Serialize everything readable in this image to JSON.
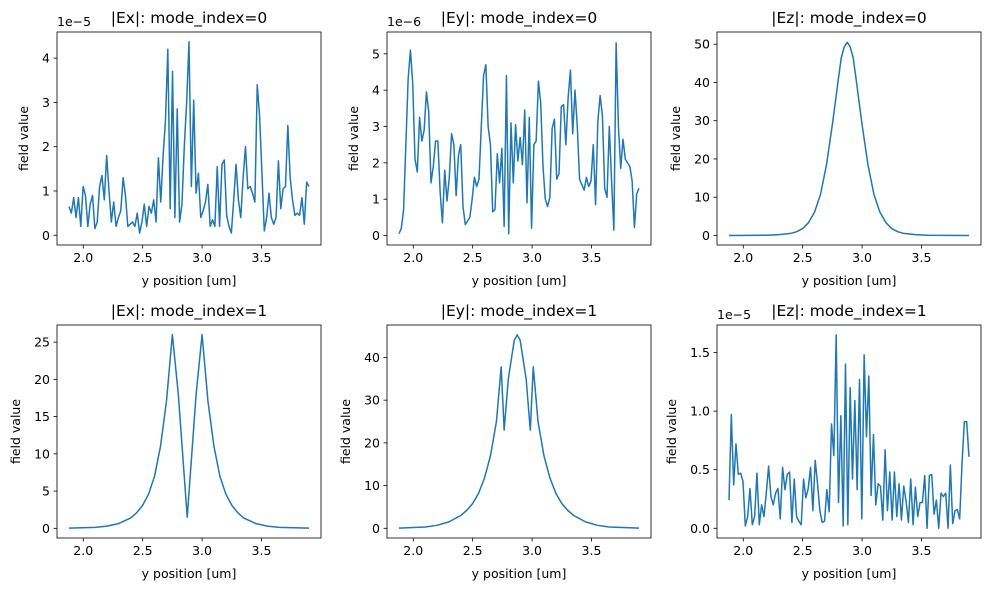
{
  "chart_data": [
    {
      "type": "line",
      "title": "|Ex|: mode_index=0",
      "xlabel": "y position [um]",
      "ylabel": "field value",
      "offset_text": "1e−5",
      "color": "#1f77b4",
      "grid": false,
      "xlim": [
        1.779,
        4.001
      ],
      "ylim": [
        -0.22,
        4.59
      ],
      "xticks": [
        2.0,
        2.5,
        3.0,
        3.5
      ],
      "xtick_labels": [
        "2.0",
        "2.5",
        "3.0",
        "3.5"
      ],
      "yticks": [
        0,
        1,
        2,
        3,
        4
      ],
      "ytick_labels": [
        "0",
        "1",
        "2",
        "3",
        "4"
      ],
      "x_range": [
        1.88,
        3.9
      ],
      "values": [
        0.65,
        0.5,
        0.85,
        0.4,
        0.85,
        0.2,
        1.1,
        0.9,
        0.2,
        0.7,
        0.9,
        0.15,
        0.3,
        1.1,
        1.35,
        0.8,
        1.8,
        1.0,
        0.3,
        0.75,
        0.2,
        0.4,
        0.55,
        1.3,
        0.9,
        0.2,
        0.25,
        0.3,
        0.2,
        0.5,
        0.05,
        0.3,
        0.7,
        0.2,
        0.65,
        0.5,
        0.8,
        0.3,
        1.75,
        0.75,
        1.8,
        2.6,
        4.2,
        0.6,
        3.7,
        0.4,
        2.85,
        0.3,
        0.7,
        2.0,
        3.0,
        4.37,
        1.1,
        3.05,
        0.95,
        1.4,
        0.4,
        0.55,
        0.75,
        1.15,
        0.2,
        0.35,
        0.2,
        1.55,
        0.2,
        1.6,
        1.7,
        0.45,
        0.2,
        0.05,
        0.8,
        1.6,
        0.8,
        0.4,
        1.3,
        2.0,
        1.05,
        1.1,
        0.95,
        0.75,
        3.4,
        2.7,
        1.4,
        0.1,
        0.4,
        0.95,
        0.4,
        0.25,
        0.4,
        1.68,
        0.6,
        1.05,
        1.1,
        2.48,
        1.3,
        0.8,
        0.45,
        0.5,
        0.45,
        0.85,
        0.25,
        1.2,
        1.1
      ]
    },
    {
      "type": "line",
      "title": "|Ey|: mode_index=0",
      "xlabel": "y position [um]",
      "ylabel": "field value",
      "offset_text": "1e−6",
      "color": "#1f77b4",
      "grid": false,
      "xlim": [
        1.779,
        4.001
      ],
      "ylim": [
        -0.26,
        5.6
      ],
      "xticks": [
        2.0,
        2.5,
        3.0,
        3.5
      ],
      "xtick_labels": [
        "2.0",
        "2.5",
        "3.0",
        "3.5"
      ],
      "yticks": [
        0,
        1,
        2,
        3,
        4,
        5
      ],
      "ytick_labels": [
        "0",
        "1",
        "2",
        "3",
        "4",
        "5"
      ],
      "x_range": [
        1.88,
        3.9
      ],
      "values": [
        0.05,
        0.2,
        0.7,
        2.5,
        4.3,
        5.1,
        4.2,
        2.1,
        1.75,
        3.25,
        2.6,
        2.9,
        3.95,
        3.4,
        1.45,
        1.9,
        2.6,
        2.6,
        1.2,
        0.35,
        1.8,
        0.95,
        1.6,
        2.8,
        2.5,
        1.1,
        2.2,
        2.5,
        0.8,
        0.3,
        0.4,
        0.5,
        1.0,
        1.6,
        1.35,
        1.55,
        3.0,
        4.4,
        4.7,
        3.0,
        2.5,
        0.65,
        0.72,
        2.25,
        1.45,
        2.4,
        0.25,
        4.4,
        0.05,
        3.1,
        1.45,
        3.05,
        2.05,
        2.7,
        1.95,
        3.45,
        0.9,
        3.25,
        0.2,
        2.5,
        2.6,
        4.25,
        3.65,
        1.9,
        1.0,
        0.8,
        1.05,
        2.95,
        3.2,
        1.55,
        1.7,
        3.55,
        3.6,
        2.5,
        3.8,
        4.55,
        2.8,
        4.0,
        3.0,
        1.55,
        1.4,
        1.25,
        1.6,
        1.35,
        1.5,
        2.5,
        0.85,
        3.15,
        3.85,
        3.3,
        1.3,
        1.05,
        3.0,
        1.5,
        0.15,
        5.3,
        3.0,
        1.85,
        2.65,
        2.1,
        2.0,
        1.9,
        1.5,
        0.22,
        1.15,
        1.3
      ]
    },
    {
      "type": "line",
      "title": "|Ez|: mode_index=0",
      "xlabel": "y position [um]",
      "ylabel": "field value",
      "offset_text": "",
      "color": "#1f77b4",
      "grid": false,
      "xlim": [
        1.779,
        4.001
      ],
      "ylim": [
        -2.5,
        53.2
      ],
      "xticks": [
        2.0,
        2.5,
        3.0,
        3.5
      ],
      "xtick_labels": [
        "2.0",
        "2.5",
        "3.0",
        "3.5"
      ],
      "yticks": [
        0,
        10,
        20,
        30,
        40,
        50
      ],
      "ytick_labels": [
        "0",
        "10",
        "20",
        "30",
        "40",
        "50"
      ],
      "x": [
        1.88,
        2.2,
        2.3,
        2.4,
        2.45,
        2.5,
        2.55,
        2.6,
        2.65,
        2.7,
        2.75,
        2.8,
        2.825,
        2.85,
        2.875,
        2.9,
        2.925,
        2.95,
        3.0,
        3.05,
        3.1,
        3.15,
        3.2,
        3.25,
        3.3,
        3.35,
        3.45,
        3.55,
        3.9
      ],
      "values": [
        0.0,
        0.04,
        0.2,
        0.53,
        0.98,
        1.8,
        3.37,
        6.1,
        10.7,
        18.4,
        29.0,
        40.8,
        46.5,
        49.3,
        50.5,
        49.3,
        46.5,
        40.8,
        29.0,
        18.4,
        10.7,
        6.1,
        3.37,
        1.8,
        0.98,
        0.53,
        0.2,
        0.04,
        0.0
      ]
    },
    {
      "type": "line",
      "title": "|Ex|: mode_index=1",
      "xlabel": "y position [um]",
      "ylabel": "field value",
      "offset_text": "",
      "color": "#1f77b4",
      "grid": false,
      "xlim": [
        1.779,
        4.001
      ],
      "ylim": [
        -1.3,
        27.3
      ],
      "xticks": [
        2.0,
        2.5,
        3.0,
        3.5
      ],
      "xtick_labels": [
        "2.0",
        "2.5",
        "3.0",
        "3.5"
      ],
      "yticks": [
        0,
        5,
        10,
        15,
        20,
        25
      ],
      "ytick_labels": [
        "0",
        "5",
        "10",
        "15",
        "20",
        "25"
      ],
      "x": [
        1.88,
        2.1,
        2.2,
        2.3,
        2.4,
        2.45,
        2.5,
        2.55,
        2.6,
        2.65,
        2.7,
        2.75,
        2.8,
        2.875,
        2.95,
        3.0,
        3.05,
        3.1,
        3.15,
        3.2,
        3.25,
        3.3,
        3.35,
        3.45,
        3.55,
        3.65,
        3.9
      ],
      "values": [
        0.02,
        0.12,
        0.3,
        0.65,
        1.4,
        2.1,
        3.1,
        4.6,
        7.0,
        11.0,
        17.0,
        26.0,
        18.0,
        1.5,
        18.0,
        26.0,
        17.0,
        11.0,
        7.0,
        4.6,
        3.1,
        2.1,
        1.4,
        0.65,
        0.3,
        0.12,
        0.02
      ]
    },
    {
      "type": "line",
      "title": "|Ey|: mode_index=1",
      "xlabel": "y position [um]",
      "ylabel": "field value",
      "offset_text": "",
      "color": "#1f77b4",
      "grid": false,
      "xlim": [
        1.779,
        4.001
      ],
      "ylim": [
        -2.27,
        47.6
      ],
      "xticks": [
        2.0,
        2.5,
        3.0,
        3.5
      ],
      "xtick_labels": [
        "2.0",
        "2.5",
        "3.0",
        "3.5"
      ],
      "yticks": [
        0,
        10,
        20,
        30,
        40
      ],
      "ytick_labels": [
        "0",
        "10",
        "20",
        "30",
        "40"
      ],
      "x": [
        1.88,
        2.1,
        2.2,
        2.3,
        2.4,
        2.45,
        2.5,
        2.55,
        2.6,
        2.65,
        2.7,
        2.74,
        2.765,
        2.8,
        2.85,
        2.875,
        2.9,
        2.95,
        2.985,
        3.01,
        3.05,
        3.1,
        3.15,
        3.2,
        3.25,
        3.3,
        3.35,
        3.45,
        3.55,
        3.65,
        3.9
      ],
      "values": [
        0.05,
        0.3,
        0.7,
        1.5,
        3.0,
        4.2,
        5.8,
        8.2,
        11.8,
        17.0,
        25.0,
        37.8,
        23.0,
        35.0,
        44.0,
        45.3,
        44.0,
        35.0,
        23.0,
        37.8,
        25.0,
        17.0,
        11.8,
        8.2,
        5.8,
        4.2,
        3.0,
        1.5,
        0.7,
        0.3,
        0.05
      ]
    },
    {
      "type": "line",
      "title": "|Ez|: mode_index=1",
      "xlabel": "y position [um]",
      "ylabel": "field value",
      "offset_text": "1e−5",
      "color": "#1f77b4",
      "grid": false,
      "xlim": [
        1.779,
        4.001
      ],
      "ylim": [
        -0.083,
        1.735
      ],
      "xticks": [
        2.0,
        2.5,
        3.0,
        3.5
      ],
      "xtick_labels": [
        "2.0",
        "2.5",
        "3.0",
        "3.5"
      ],
      "yticks": [
        0.0,
        0.5,
        1.0,
        1.5
      ],
      "ytick_labels": [
        "0.0",
        "0.5",
        "1.0",
        "1.5"
      ],
      "x_range": [
        1.88,
        3.9
      ],
      "values": [
        0.24,
        0.97,
        0.37,
        0.72,
        0.46,
        0.47,
        0.4,
        0.02,
        0.1,
        0.34,
        0.03,
        0.1,
        0.47,
        0.03,
        0.2,
        0.1,
        0.3,
        0.53,
        0.27,
        0.2,
        0.3,
        0.34,
        0.08,
        0.52,
        0.33,
        0.46,
        0.48,
        0.05,
        0.42,
        0.1,
        0.06,
        0.03,
        0.42,
        0.26,
        0.34,
        0.52,
        0.15,
        0.58,
        0.38,
        0.15,
        0.05,
        0.06,
        0.33,
        0.14,
        0.89,
        0.62,
        1.65,
        0.22,
        0.96,
        0.02,
        1.4,
        0.03,
        1.2,
        0.42,
        1.09,
        0.33,
        1.27,
        0.08,
        1.48,
        0.78,
        1.3,
        0.28,
        0.8,
        0.2,
        0.38,
        0.36,
        0.07,
        0.67,
        0.15,
        0.48,
        0.07,
        0.48,
        0.1,
        0.38,
        0.07,
        0.36,
        0.23,
        0.05,
        0.42,
        0.03,
        0.35,
        0.1,
        0.22,
        0.22,
        0.45,
        0.0,
        0.45,
        0.46,
        0.12,
        0.24,
        0.0,
        0.3,
        0.27,
        0.3,
        0.0,
        0.54,
        0.04,
        0.15,
        0.16,
        0.08,
        0.55,
        0.91,
        0.91,
        0.61
      ]
    }
  ]
}
